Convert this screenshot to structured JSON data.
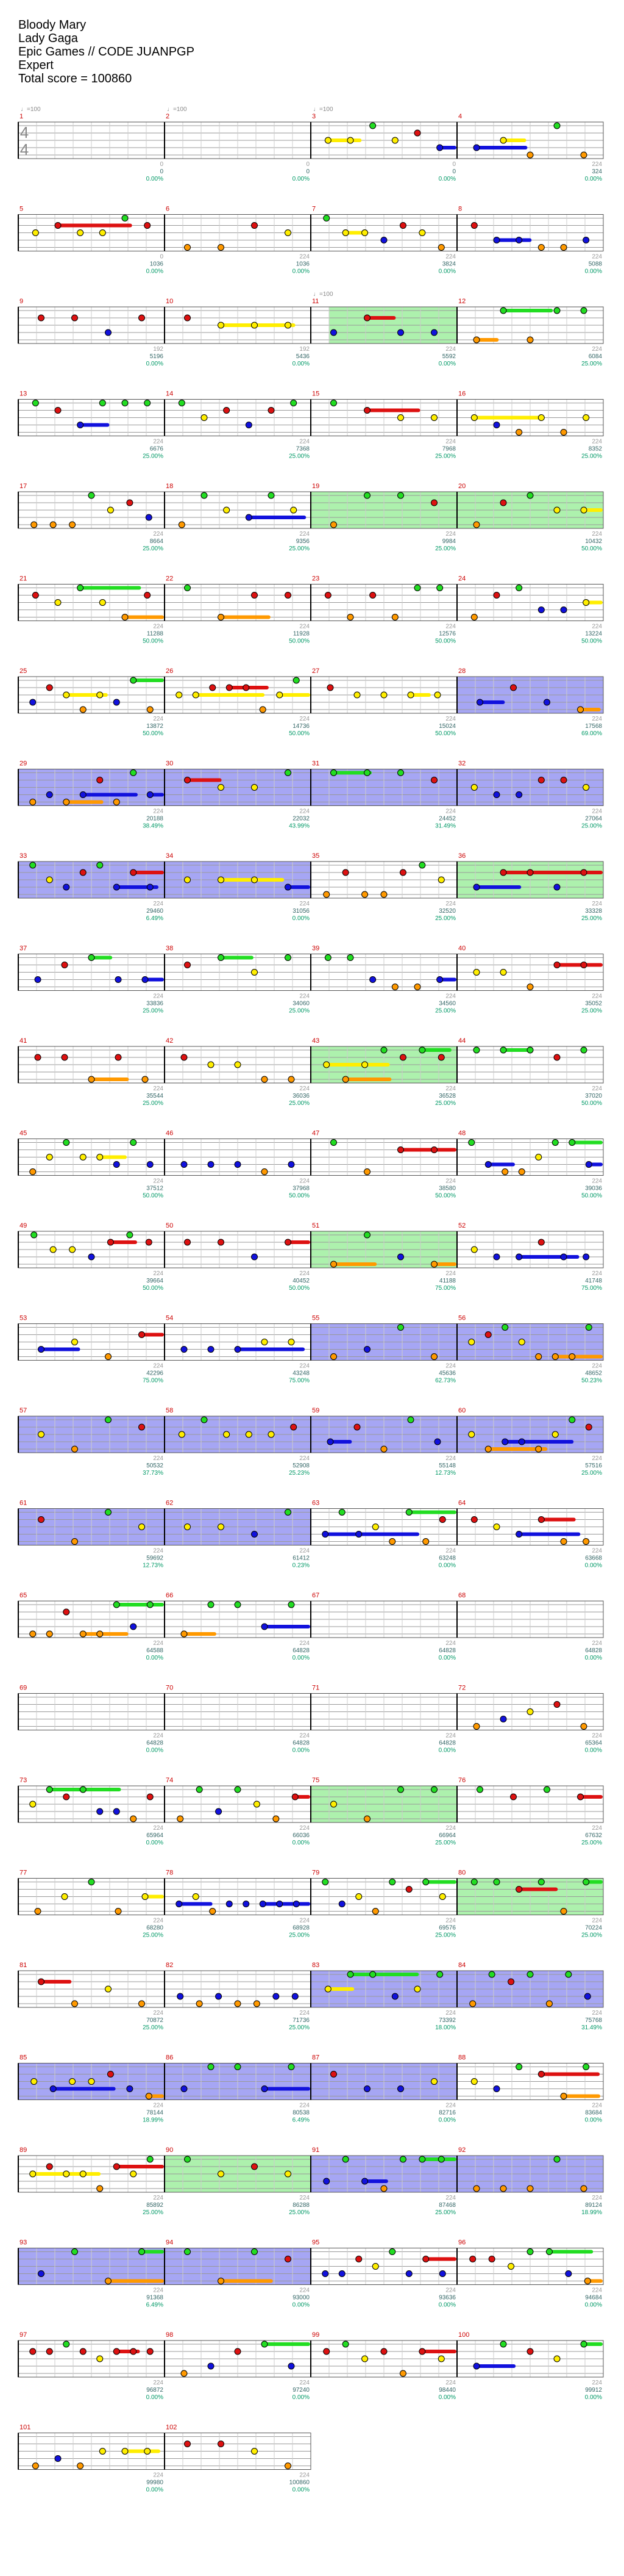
{
  "song": {
    "title": "Bloody Mary",
    "artist": "Lady Gaga",
    "charter": "Epic Games // CODE JUANPGP",
    "difficulty": "Expert",
    "total_score_label": "Total score = 100860"
  },
  "colors": {
    "green": "#22dd22",
    "red": "#dd1111",
    "yellow": "#ffee00",
    "blue": "#1111dd",
    "orange": "#ff9900",
    "star_power_bg": "#7777ee",
    "solo_bg": "#99ee99",
    "measure_number": "#cc0000",
    "tick_text": "#999999",
    "score_text": "#336666",
    "percent_text": "#009966"
  },
  "time_signature": "4/4",
  "tempo_markers": [
    {
      "measure": 1,
      "label": "♩=100"
    },
    {
      "measure": 2,
      "label": "♩=100"
    },
    {
      "measure": 3,
      "label": "♩=100"
    },
    {
      "measure": 11,
      "label": "♩=100"
    }
  ],
  "measures": [
    {
      "n": 1,
      "tick": 0,
      "score": 0,
      "pct": "0.00%"
    },
    {
      "n": 2,
      "tick": 0,
      "score": 0,
      "pct": "0.00%"
    },
    {
      "n": 3,
      "tick": 0,
      "score": 0,
      "pct": "0.00%"
    },
    {
      "n": 4,
      "tick": 224,
      "score": 324,
      "pct": "0.00%"
    },
    {
      "n": 5,
      "tick": 0,
      "score": 1036,
      "pct": "0.00%"
    },
    {
      "n": 6,
      "tick": 224,
      "score": 1036,
      "pct": "0.00%"
    },
    {
      "n": 7,
      "tick": 224,
      "score": 3824,
      "pct": "0.00%"
    },
    {
      "n": 8,
      "tick": 224,
      "score": 5088,
      "pct": "0.00%"
    },
    {
      "n": 9,
      "tick": 192,
      "score": 5196,
      "pct": "0.00%"
    },
    {
      "n": 10,
      "tick": 192,
      "score": 5436,
      "pct": "0.00%"
    },
    {
      "n": 11,
      "tick": 224,
      "score": 5592,
      "pct": "0.00%"
    },
    {
      "n": 12,
      "tick": 224,
      "score": 6084,
      "pct": "25.00%"
    },
    {
      "n": 13,
      "tick": 224,
      "score": 6676,
      "pct": "25.00%"
    },
    {
      "n": 14,
      "tick": 224,
      "score": 7368,
      "pct": "25.00%"
    },
    {
      "n": 15,
      "tick": 224,
      "score": 7968,
      "pct": "25.00%"
    },
    {
      "n": 16,
      "tick": 224,
      "score": 8352,
      "pct": "25.00%"
    },
    {
      "n": 17,
      "tick": 224,
      "score": 8664,
      "pct": "25.00%"
    },
    {
      "n": 18,
      "tick": 224,
      "score": 9356,
      "pct": "25.00%"
    },
    {
      "n": 19,
      "tick": 224,
      "score": 9984,
      "pct": "25.00%"
    },
    {
      "n": 20,
      "tick": 224,
      "score": 10432,
      "pct": "50.00%"
    },
    {
      "n": 21,
      "tick": 224,
      "score": 11288,
      "pct": "50.00%"
    },
    {
      "n": 22,
      "tick": 224,
      "score": 11928,
      "pct": "50.00%"
    },
    {
      "n": 23,
      "tick": 224,
      "score": 12576,
      "pct": "50.00%"
    },
    {
      "n": 24,
      "tick": 224,
      "score": 13224,
      "pct": "50.00%"
    },
    {
      "n": 25,
      "tick": 224,
      "score": 13872,
      "pct": "50.00%"
    },
    {
      "n": 26,
      "tick": 224,
      "score": 14736,
      "pct": "50.00%"
    },
    {
      "n": 27,
      "tick": 224,
      "score": 15024,
      "pct": "50.00%"
    },
    {
      "n": 28,
      "tick": 224,
      "score": 17568,
      "pct": "69.00%"
    },
    {
      "n": 29,
      "tick": 224,
      "score": 20188,
      "pct": "38.49%"
    },
    {
      "n": 30,
      "tick": 224,
      "score": 22032,
      "pct": "43.99%"
    },
    {
      "n": 31,
      "tick": 224,
      "score": 24452,
      "pct": "31.49%"
    },
    {
      "n": 32,
      "tick": 224,
      "score": 27064,
      "pct": "25.00%"
    },
    {
      "n": 33,
      "tick": 224,
      "score": 29460,
      "pct": "6.49%"
    },
    {
      "n": 34,
      "tick": 224,
      "score": 31056,
      "pct": "0.00%"
    },
    {
      "n": 35,
      "tick": 224,
      "score": 32520,
      "pct": "25.00%"
    },
    {
      "n": 36,
      "tick": 224,
      "score": 33328,
      "pct": "25.00%"
    },
    {
      "n": 37,
      "tick": 224,
      "score": 33836,
      "pct": "25.00%"
    },
    {
      "n": 38,
      "tick": 224,
      "score": 34060,
      "pct": "25.00%"
    },
    {
      "n": 39,
      "tick": 224,
      "score": 34560,
      "pct": "25.00%"
    },
    {
      "n": 40,
      "tick": 224,
      "score": 35052,
      "pct": "25.00%"
    },
    {
      "n": 41,
      "tick": 224,
      "score": 35544,
      "pct": "25.00%"
    },
    {
      "n": 42,
      "tick": 224,
      "score": 36036,
      "pct": "25.00%"
    },
    {
      "n": 43,
      "tick": 224,
      "score": 36528,
      "pct": "25.00%"
    },
    {
      "n": 44,
      "tick": 224,
      "score": 37020,
      "pct": "50.00%"
    },
    {
      "n": 45,
      "tick": 224,
      "score": 37512,
      "pct": "50.00%"
    },
    {
      "n": 46,
      "tick": 224,
      "score": 37968,
      "pct": "50.00%"
    },
    {
      "n": 47,
      "tick": 224,
      "score": 38580,
      "pct": "50.00%"
    },
    {
      "n": 48,
      "tick": 224,
      "score": 39036,
      "pct": "50.00%"
    },
    {
      "n": 49,
      "tick": 224,
      "score": 39664,
      "pct": "50.00%"
    },
    {
      "n": 50,
      "tick": 224,
      "score": 40452,
      "pct": "50.00%"
    },
    {
      "n": 51,
      "tick": 224,
      "score": 41188,
      "pct": "75.00%"
    },
    {
      "n": 52,
      "tick": 224,
      "score": 41748,
      "pct": "75.00%"
    },
    {
      "n": 53,
      "tick": 224,
      "score": 42296,
      "pct": "75.00%"
    },
    {
      "n": 54,
      "tick": 224,
      "score": 43248,
      "pct": "75.00%"
    },
    {
      "n": 55,
      "tick": 224,
      "score": 45636,
      "pct": "62.73%"
    },
    {
      "n": 56,
      "tick": 224,
      "score": 48652,
      "pct": "50.23%"
    },
    {
      "n": 57,
      "tick": 224,
      "score": 50532,
      "pct": "37.73%"
    },
    {
      "n": 58,
      "tick": 224,
      "score": 52908,
      "pct": "25.23%"
    },
    {
      "n": 59,
      "tick": 224,
      "score": 55148,
      "pct": "12.73%"
    },
    {
      "n": 60,
      "tick": 224,
      "score": 57516,
      "pct": "25.00%"
    },
    {
      "n": 61,
      "tick": 224,
      "score": 59692,
      "pct": "12.73%"
    },
    {
      "n": 62,
      "tick": 224,
      "score": 61412,
      "pct": "0.23%"
    },
    {
      "n": 63,
      "tick": 224,
      "score": 63248,
      "pct": "0.00%"
    },
    {
      "n": 64,
      "tick": 224,
      "score": 63668,
      "pct": "0.00%"
    },
    {
      "n": 65,
      "tick": 224,
      "score": 64588,
      "pct": "0.00%"
    },
    {
      "n": 66,
      "tick": 224,
      "score": 64828,
      "pct": "0.00%"
    },
    {
      "n": 67,
      "tick": 224,
      "score": 64828,
      "pct": "0.00%"
    },
    {
      "n": 68,
      "tick": 224,
      "score": 64828,
      "pct": "0.00%"
    },
    {
      "n": 69,
      "tick": 224,
      "score": 64828,
      "pct": "0.00%"
    },
    {
      "n": 70,
      "tick": 224,
      "score": 64828,
      "pct": "0.00%"
    },
    {
      "n": 71,
      "tick": 224,
      "score": 64828,
      "pct": "0.00%"
    },
    {
      "n": 72,
      "tick": 224,
      "score": 65364,
      "pct": "0.00%"
    },
    {
      "n": 73,
      "tick": 224,
      "score": 65964,
      "pct": "0.00%"
    },
    {
      "n": 74,
      "tick": 224,
      "score": 66036,
      "pct": "0.00%"
    },
    {
      "n": 75,
      "tick": 224,
      "score": 66964,
      "pct": "25.00%"
    },
    {
      "n": 76,
      "tick": 224,
      "score": 67632,
      "pct": "25.00%"
    },
    {
      "n": 77,
      "tick": 224,
      "score": 68280,
      "pct": "25.00%"
    },
    {
      "n": 78,
      "tick": 224,
      "score": 68928,
      "pct": "25.00%"
    },
    {
      "n": 79,
      "tick": 224,
      "score": 69576,
      "pct": "25.00%"
    },
    {
      "n": 80,
      "tick": 224,
      "score": 70224,
      "pct": "25.00%"
    },
    {
      "n": 81,
      "tick": 224,
      "score": 70872,
      "pct": "25.00%"
    },
    {
      "n": 82,
      "tick": 224,
      "score": 71736,
      "pct": "25.00%"
    },
    {
      "n": 83,
      "tick": 224,
      "score": 73392,
      "pct": "18.00%"
    },
    {
      "n": 84,
      "tick": 224,
      "score": 75768,
      "pct": "31.49%"
    },
    {
      "n": 85,
      "tick": 224,
      "score": 78144,
      "pct": "18.99%"
    },
    {
      "n": 86,
      "tick": 224,
      "score": 80538,
      "pct": "6.49%"
    },
    {
      "n": 87,
      "tick": 224,
      "score": 82716,
      "pct": "0.00%"
    },
    {
      "n": 88,
      "tick": 224,
      "score": 83684,
      "pct": "0.00%"
    },
    {
      "n": 89,
      "tick": 224,
      "score": 85892,
      "pct": "25.00%"
    },
    {
      "n": 90,
      "tick": 224,
      "score": 86288,
      "pct": "25.00%"
    },
    {
      "n": 91,
      "tick": 224,
      "score": 87468,
      "pct": "25.00%"
    },
    {
      "n": 92,
      "tick": 224,
      "score": 89124,
      "pct": "18.99%"
    },
    {
      "n": 93,
      "tick": 224,
      "score": 91368,
      "pct": "6.49%"
    },
    {
      "n": 94,
      "tick": 224,
      "score": 93000,
      "pct": "0.00%"
    },
    {
      "n": 95,
      "tick": 224,
      "score": 93636,
      "pct": "0.00%"
    },
    {
      "n": 96,
      "tick": 224,
      "score": 94684,
      "pct": "0.00%"
    },
    {
      "n": 97,
      "tick": 224,
      "score": 96872,
      "pct": "0.00%"
    },
    {
      "n": 98,
      "tick": 224,
      "score": 97240,
      "pct": "0.00%"
    },
    {
      "n": 99,
      "tick": 224,
      "score": 98440,
      "pct": "0.00%"
    },
    {
      "n": 100,
      "tick": 224,
      "score": 99912,
      "pct": "0.00%"
    },
    {
      "n": 101,
      "tick": 224,
      "score": 99980,
      "pct": "0.00%"
    },
    {
      "n": 102,
      "tick": 224,
      "score": 100860,
      "pct": "0.00%"
    }
  ]
}
